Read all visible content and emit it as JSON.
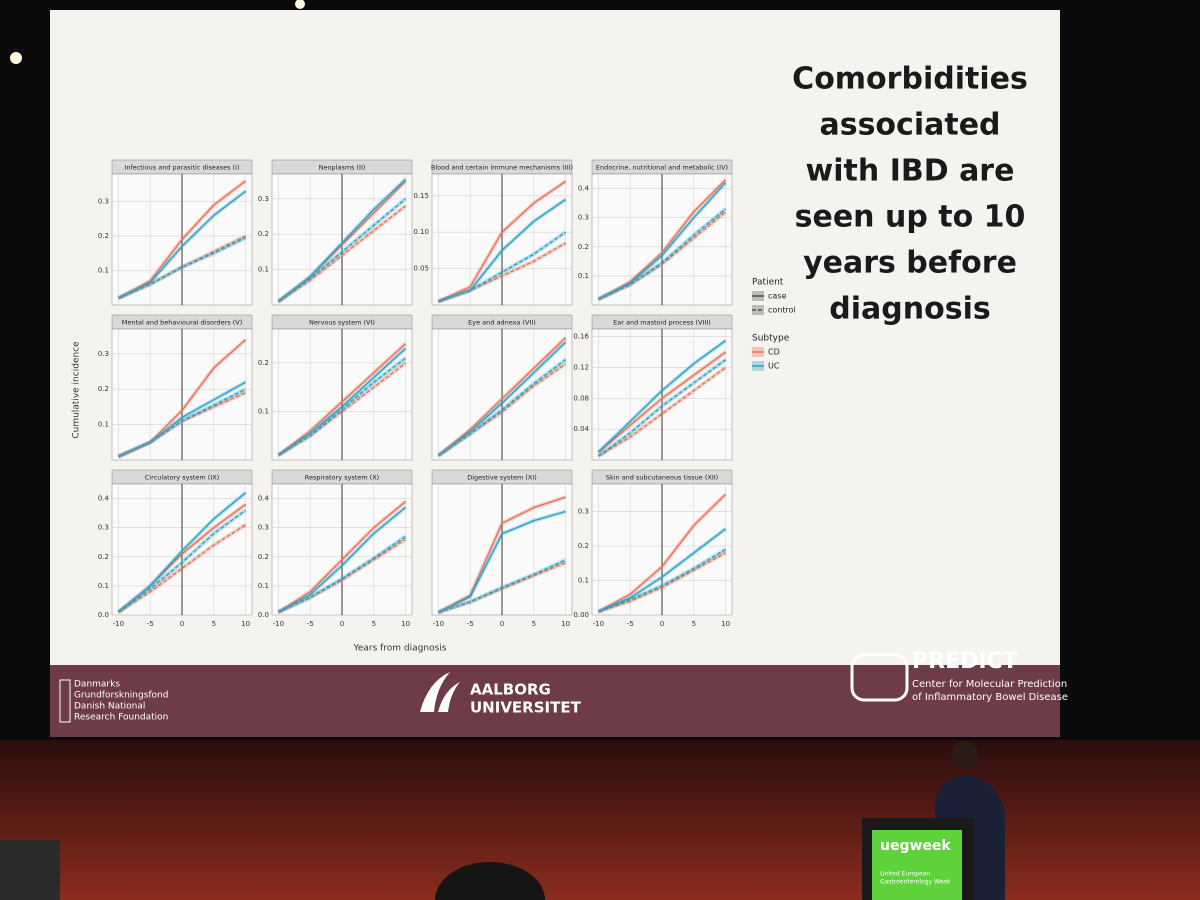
{
  "slide": {
    "headline": [
      "Comorbidities",
      "associated",
      "with IBD are",
      "seen up to 10",
      "years before",
      "diagnosis"
    ],
    "y_label": "Cumulative incidence",
    "x_label": "Years from diagnosis",
    "legend": [
      {
        "title": "Patient",
        "items": [
          {
            "label": "case",
            "color": "#555555",
            "line_style": "solid"
          },
          {
            "label": "control",
            "color": "#555555",
            "line_style": "dashed"
          }
        ]
      },
      {
        "title": "Subtype",
        "items": [
          {
            "label": "CD",
            "color": "#e8735a",
            "line_style": "solid"
          },
          {
            "label": "UC",
            "color": "#2ea3c4",
            "line_style": "solid"
          }
        ]
      }
    ],
    "footer": {
      "dnrf": [
        "Danmarks",
        "Grundforskningsfond",
        "Danish National",
        "Research Foundation"
      ],
      "aau": [
        "AALBORG",
        "UNIVERSITET"
      ],
      "predict": "PREDICT",
      "predict_sub": [
        "Center for Molecular Prediction",
        "of Inflammatory Bowel Disease"
      ]
    }
  },
  "stage": {
    "podium": [
      "uegweek",
      "United European",
      "Gastroenterology Week"
    ]
  },
  "chart_data": [
    {
      "type": "line",
      "title": "Infectious and parasitic diseases (I)",
      "x": [
        -10,
        -5,
        0,
        5,
        10
      ],
      "xlim": [
        -11,
        11
      ],
      "xticks": [
        -10,
        -5,
        0,
        5,
        10
      ],
      "show_xtick_labels": false,
      "vline": 0,
      "ylim": [
        0,
        0.38
      ],
      "yticks": [
        0.1,
        0.2,
        0.3
      ],
      "series": [
        {
          "color": "#e8735a",
          "line_style": "solid",
          "values": [
            0.02,
            0.07,
            0.19,
            0.29,
            0.36
          ]
        },
        {
          "color": "#2ea3c4",
          "line_style": "solid",
          "values": [
            0.02,
            0.065,
            0.17,
            0.26,
            0.33
          ]
        },
        {
          "color": "#e8735a",
          "line_style": "dashed",
          "values": [
            0.02,
            0.06,
            0.11,
            0.155,
            0.2
          ]
        },
        {
          "color": "#2ea3c4",
          "line_style": "dashed",
          "values": [
            0.02,
            0.06,
            0.11,
            0.15,
            0.195
          ]
        }
      ]
    },
    {
      "type": "line",
      "title": "Neoplasms (II)",
      "x": [
        -10,
        -5,
        0,
        5,
        10
      ],
      "xlim": [
        -11,
        11
      ],
      "xticks": [
        -10,
        -5,
        0,
        5,
        10
      ],
      "show_xtick_labels": false,
      "vline": 0,
      "ylim": [
        0,
        0.37
      ],
      "yticks": [
        0.1,
        0.2,
        0.3
      ],
      "series": [
        {
          "color": "#e8735a",
          "line_style": "solid",
          "values": [
            0.01,
            0.08,
            0.17,
            0.26,
            0.35
          ]
        },
        {
          "color": "#2ea3c4",
          "line_style": "solid",
          "values": [
            0.01,
            0.08,
            0.175,
            0.27,
            0.355
          ]
        },
        {
          "color": "#e8735a",
          "line_style": "dashed",
          "values": [
            0.01,
            0.07,
            0.14,
            0.21,
            0.28
          ]
        },
        {
          "color": "#2ea3c4",
          "line_style": "dashed",
          "values": [
            0.01,
            0.075,
            0.15,
            0.225,
            0.3
          ]
        }
      ]
    },
    {
      "type": "line",
      "title": "Blood and certain immune mechanisms (III)",
      "x": [
        -10,
        -5,
        0,
        5,
        10
      ],
      "xlim": [
        -11,
        11
      ],
      "xticks": [
        -10,
        -5,
        0,
        5,
        10
      ],
      "show_xtick_labels": false,
      "vline": 0,
      "ylim": [
        0,
        0.18
      ],
      "yticks": [
        0.05,
        {
          "value": 0.1,
          "label": "0.10"
        },
        0.15
      ],
      "series": [
        {
          "color": "#e8735a",
          "line_style": "solid",
          "values": [
            0.005,
            0.025,
            0.1,
            0.14,
            0.17
          ]
        },
        {
          "color": "#2ea3c4",
          "line_style": "solid",
          "values": [
            0.005,
            0.02,
            0.075,
            0.115,
            0.145
          ]
        },
        {
          "color": "#e8735a",
          "line_style": "dashed",
          "values": [
            0.005,
            0.02,
            0.04,
            0.06,
            0.085
          ]
        },
        {
          "color": "#2ea3c4",
          "line_style": "dashed",
          "values": [
            0.005,
            0.02,
            0.045,
            0.07,
            0.1
          ]
        }
      ]
    },
    {
      "type": "line",
      "title": "Endocrine, nutritional and metabolic (IV)",
      "x": [
        -10,
        -5,
        0,
        5,
        10
      ],
      "xlim": [
        -11,
        11
      ],
      "xticks": [
        -10,
        -5,
        0,
        5,
        10
      ],
      "show_xtick_labels": false,
      "vline": 0,
      "ylim": [
        0,
        0.45
      ],
      "yticks": [
        0.1,
        0.2,
        0.3,
        0.4
      ],
      "series": [
        {
          "color": "#e8735a",
          "line_style": "solid",
          "values": [
            0.02,
            0.08,
            0.18,
            0.32,
            0.43
          ]
        },
        {
          "color": "#2ea3c4",
          "line_style": "solid",
          "values": [
            0.02,
            0.075,
            0.17,
            0.3,
            0.42
          ]
        },
        {
          "color": "#e8735a",
          "line_style": "dashed",
          "values": [
            0.02,
            0.07,
            0.14,
            0.23,
            0.32
          ]
        },
        {
          "color": "#2ea3c4",
          "line_style": "dashed",
          "values": [
            0.02,
            0.07,
            0.145,
            0.24,
            0.33
          ]
        }
      ]
    },
    {
      "type": "line",
      "title": "Mental and behavioural disorders (V)",
      "x": [
        -10,
        -5,
        0,
        5,
        10
      ],
      "xlim": [
        -11,
        11
      ],
      "xticks": [
        -10,
        -5,
        0,
        5,
        10
      ],
      "show_xtick_labels": false,
      "vline": 0,
      "ylim": [
        0,
        0.37
      ],
      "yticks": [
        0.1,
        0.2,
        0.3
      ],
      "series": [
        {
          "color": "#e8735a",
          "line_style": "solid",
          "values": [
            0.01,
            0.05,
            0.14,
            0.26,
            0.34
          ]
        },
        {
          "color": "#2ea3c4",
          "line_style": "solid",
          "values": [
            0.01,
            0.05,
            0.12,
            0.17,
            0.22
          ]
        },
        {
          "color": "#e8735a",
          "line_style": "dashed",
          "values": [
            0.01,
            0.05,
            0.11,
            0.15,
            0.19
          ]
        },
        {
          "color": "#2ea3c4",
          "line_style": "dashed",
          "values": [
            0.01,
            0.05,
            0.11,
            0.155,
            0.2
          ]
        }
      ]
    },
    {
      "type": "line",
      "title": "Nervous system (VI)",
      "x": [
        -10,
        -5,
        0,
        5,
        10
      ],
      "xlim": [
        -11,
        11
      ],
      "xticks": [
        -10,
        -5,
        0,
        5,
        10
      ],
      "show_xtick_labels": false,
      "vline": 0,
      "ylim": [
        0,
        0.27
      ],
      "yticks": [
        0.1,
        0.2
      ],
      "series": [
        {
          "color": "#e8735a",
          "line_style": "solid",
          "values": [
            0.01,
            0.06,
            0.12,
            0.18,
            0.24
          ]
        },
        {
          "color": "#2ea3c4",
          "line_style": "solid",
          "values": [
            0.01,
            0.055,
            0.11,
            0.17,
            0.23
          ]
        },
        {
          "color": "#e8735a",
          "line_style": "dashed",
          "values": [
            0.01,
            0.05,
            0.1,
            0.15,
            0.2
          ]
        },
        {
          "color": "#2ea3c4",
          "line_style": "dashed",
          "values": [
            0.01,
            0.05,
            0.105,
            0.16,
            0.21
          ]
        }
      ]
    },
    {
      "type": "line",
      "title": "Eye and adnexa (VII)",
      "x": [
        -10,
        -5,
        0,
        5,
        10
      ],
      "xlim": [
        -11,
        11
      ],
      "xticks": [
        -10,
        -5,
        0,
        5,
        10
      ],
      "show_xtick_labels": false,
      "vline": 0,
      "ylim": [
        0,
        0.3
      ],
      "series": [
        {
          "color": "#e8735a",
          "line_style": "solid",
          "values": [
            0.01,
            0.07,
            0.14,
            0.21,
            0.28
          ]
        },
        {
          "color": "#2ea3c4",
          "line_style": "solid",
          "values": [
            0.01,
            0.065,
            0.13,
            0.2,
            0.27
          ]
        },
        {
          "color": "#e8735a",
          "line_style": "dashed",
          "values": [
            0.01,
            0.06,
            0.11,
            0.17,
            0.22
          ]
        },
        {
          "color": "#2ea3c4",
          "line_style": "dashed",
          "values": [
            0.01,
            0.06,
            0.115,
            0.175,
            0.23
          ]
        }
      ]
    },
    {
      "type": "line",
      "title": "Ear and mastoid process (VIII)",
      "x": [
        -10,
        -5,
        0,
        5,
        10
      ],
      "xlim": [
        -11,
        11
      ],
      "xticks": [
        -10,
        -5,
        0,
        5,
        10
      ],
      "show_xtick_labels": false,
      "vline": 0,
      "ylim": [
        0,
        0.17
      ],
      "yticks": [
        0.04,
        0.08,
        0.12,
        0.16
      ],
      "series": [
        {
          "color": "#e8735a",
          "line_style": "solid",
          "values": [
            0.01,
            0.045,
            0.08,
            0.11,
            0.14
          ]
        },
        {
          "color": "#2ea3c4",
          "line_style": "solid",
          "values": [
            0.01,
            0.05,
            0.09,
            0.125,
            0.155
          ]
        },
        {
          "color": "#e8735a",
          "line_style": "dashed",
          "values": [
            0.005,
            0.03,
            0.06,
            0.09,
            0.12
          ]
        },
        {
          "color": "#2ea3c4",
          "line_style": "dashed",
          "values": [
            0.005,
            0.035,
            0.07,
            0.1,
            0.13
          ]
        }
      ]
    },
    {
      "type": "line",
      "title": "Circulatory system (IX)",
      "x": [
        -10,
        -5,
        0,
        5,
        10
      ],
      "xlim": [
        -11,
        11
      ],
      "xticks": [
        -10,
        -5,
        0,
        5,
        10
      ],
      "show_xtick_labels": true,
      "vline": 0,
      "ylim": [
        0,
        0.45
      ],
      "yticks": [
        {
          "value": 0,
          "label": "0.0"
        },
        0.1,
        0.2,
        0.3,
        0.4
      ],
      "series": [
        {
          "color": "#e8735a",
          "line_style": "solid",
          "values": [
            0.01,
            0.1,
            0.21,
            0.3,
            0.38
          ]
        },
        {
          "color": "#2ea3c4",
          "line_style": "solid",
          "values": [
            0.01,
            0.1,
            0.22,
            0.33,
            0.42
          ]
        },
        {
          "color": "#e8735a",
          "line_style": "dashed",
          "values": [
            0.01,
            0.08,
            0.16,
            0.24,
            0.31
          ]
        },
        {
          "color": "#2ea3c4",
          "line_style": "dashed",
          "values": [
            0.01,
            0.09,
            0.18,
            0.28,
            0.36
          ]
        }
      ]
    },
    {
      "type": "line",
      "title": "Respiratory system (X)",
      "x": [
        -10,
        -5,
        0,
        5,
        10
      ],
      "xlim": [
        -11,
        11
      ],
      "xticks": [
        -10,
        -5,
        0,
        5,
        10
      ],
      "show_xtick_labels": true,
      "vline": 0,
      "ylim": [
        0,
        0.45
      ],
      "yticks": [
        {
          "value": 0,
          "label": "0.0"
        },
        0.1,
        0.2,
        0.3,
        0.4
      ],
      "series": [
        {
          "color": "#e8735a",
          "line_style": "solid",
          "values": [
            0.01,
            0.08,
            0.19,
            0.3,
            0.39
          ]
        },
        {
          "color": "#2ea3c4",
          "line_style": "solid",
          "values": [
            0.01,
            0.07,
            0.17,
            0.28,
            0.37
          ]
        },
        {
          "color": "#e8735a",
          "line_style": "dashed",
          "values": [
            0.01,
            0.06,
            0.12,
            0.19,
            0.26
          ]
        },
        {
          "color": "#2ea3c4",
          "line_style": "dashed",
          "values": [
            0.01,
            0.06,
            0.125,
            0.195,
            0.27
          ]
        }
      ]
    },
    {
      "type": "line",
      "title": "Digestive system (XI)",
      "x": [
        -10,
        -5,
        0,
        5,
        10
      ],
      "xlim": [
        -11,
        11
      ],
      "xticks": [
        -10,
        -5,
        0,
        5,
        10
      ],
      "show_xtick_labels": true,
      "vline": 0,
      "ylim": [
        0,
        1
      ],
      "series": [
        {
          "color": "#e8735a",
          "line_style": "solid",
          "values": [
            0.02,
            0.15,
            0.7,
            0.82,
            0.9
          ]
        },
        {
          "color": "#2ea3c4",
          "line_style": "solid",
          "values": [
            0.02,
            0.14,
            0.62,
            0.72,
            0.79
          ]
        },
        {
          "color": "#e8735a",
          "line_style": "dashed",
          "values": [
            0.02,
            0.1,
            0.2,
            0.3,
            0.4
          ]
        },
        {
          "color": "#2ea3c4",
          "line_style": "dashed",
          "values": [
            0.02,
            0.1,
            0.21,
            0.31,
            0.42
          ]
        }
      ]
    },
    {
      "type": "line",
      "title": "Skin and subcutaneous tissue (XII)",
      "x": [
        -10,
        -5,
        0,
        5,
        10
      ],
      "xlim": [
        -11,
        11
      ],
      "xticks": [
        -10,
        -5,
        0,
        5,
        10
      ],
      "show_xtick_labels": true,
      "vline": 0,
      "ylim": [
        0,
        0.38
      ],
      "yticks": [
        {
          "value": 0,
          "label": "0.00"
        },
        0.1,
        0.2,
        0.3
      ],
      "series": [
        {
          "color": "#e8735a",
          "line_style": "solid",
          "values": [
            0.01,
            0.06,
            0.14,
            0.26,
            0.35
          ]
        },
        {
          "color": "#2ea3c4",
          "line_style": "solid",
          "values": [
            0.01,
            0.05,
            0.11,
            0.18,
            0.25
          ]
        },
        {
          "color": "#e8735a",
          "line_style": "dashed",
          "values": [
            0.01,
            0.04,
            0.08,
            0.13,
            0.18
          ]
        },
        {
          "color": "#2ea3c4",
          "line_style": "dashed",
          "values": [
            0.01,
            0.045,
            0.085,
            0.135,
            0.19
          ]
        }
      ]
    }
  ]
}
